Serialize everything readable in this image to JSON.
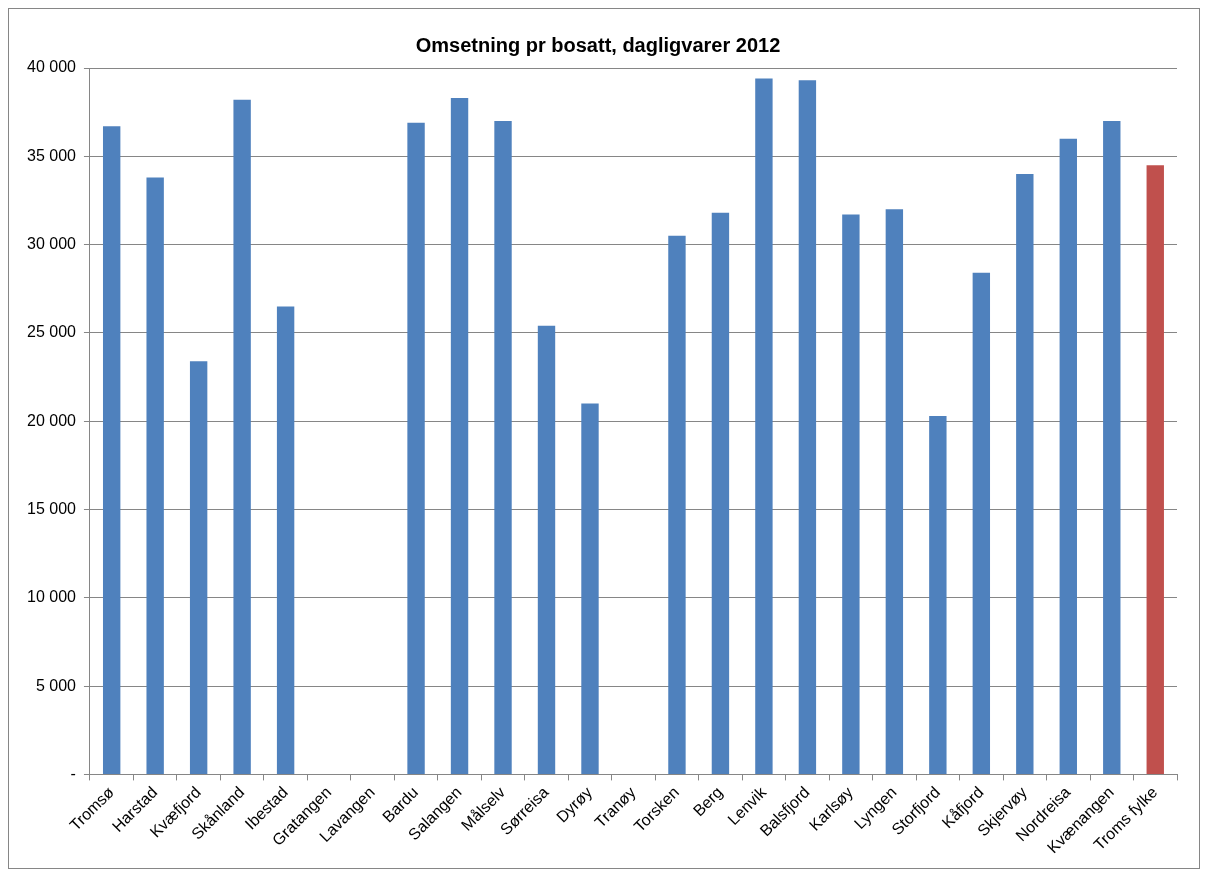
{
  "chart_data": {
    "type": "bar",
    "title": "Omsetning pr bosatt, dagligvarer 2012",
    "categories": [
      "Tromsø",
      "Harstad",
      "Kvæfjord",
      "Skånland",
      "Ibestad",
      "Gratangen",
      "Lavangen",
      "Bardu",
      "Salangen",
      "Målselv",
      "Sørreisa",
      "Dyrøy",
      "Tranøy",
      "Torsken",
      "Berg",
      "Lenvik",
      "Balsfjord",
      "Karlsøy",
      "Lyngen",
      "Storfjord",
      "Kåfjord",
      "Skjervøy",
      "Nordreisa",
      "Kvænangen",
      "Troms fylke"
    ],
    "values": [
      36700,
      33800,
      23400,
      38200,
      26500,
      null,
      null,
      36900,
      38300,
      37000,
      25400,
      21000,
      null,
      30500,
      31800,
      39400,
      39300,
      31700,
      32000,
      20300,
      28400,
      34000,
      36000,
      37000,
      34500
    ],
    "colors": [
      "#4f81bd",
      "#4f81bd",
      "#4f81bd",
      "#4f81bd",
      "#4f81bd",
      "#4f81bd",
      "#4f81bd",
      "#4f81bd",
      "#4f81bd",
      "#4f81bd",
      "#4f81bd",
      "#4f81bd",
      "#4f81bd",
      "#4f81bd",
      "#4f81bd",
      "#4f81bd",
      "#4f81bd",
      "#4f81bd",
      "#4f81bd",
      "#4f81bd",
      "#4f81bd",
      "#4f81bd",
      "#4f81bd",
      "#4f81bd",
      "#c0504d"
    ],
    "ylim": [
      0,
      40000
    ],
    "yticks": [
      {
        "value": 0,
        "label": "-"
      },
      {
        "value": 5000,
        "label": "5 000"
      },
      {
        "value": 10000,
        "label": "10 000"
      },
      {
        "value": 15000,
        "label": "15 000"
      },
      {
        "value": 20000,
        "label": "20 000"
      },
      {
        "value": 25000,
        "label": "25 000"
      },
      {
        "value": 30000,
        "label": "30 000"
      },
      {
        "value": 35000,
        "label": "35 000"
      },
      {
        "value": 40000,
        "label": "40 000"
      }
    ],
    "grid": "y",
    "legend": false
  }
}
